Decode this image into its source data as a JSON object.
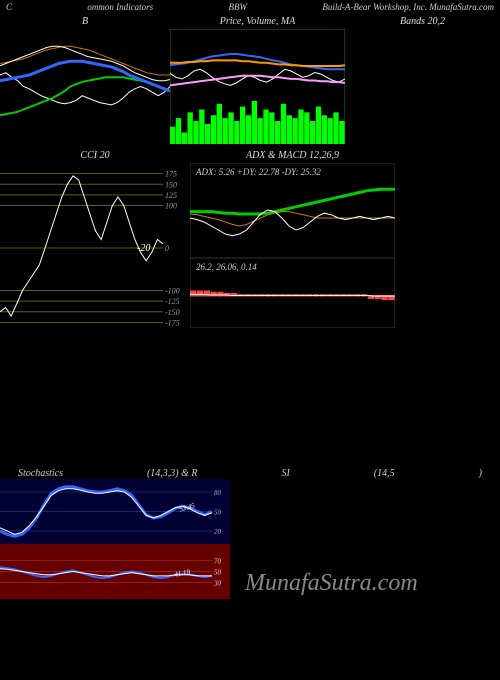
{
  "header": {
    "left": "C",
    "mid1": "ommon  Indicators",
    "mid2": "BBW",
    "right": "Build-A-Bear Workshop, Inc. MunafaSutra.com"
  },
  "panels": {
    "bb": {
      "title": "B",
      "bg": "#000000",
      "series": {
        "white1": {
          "color": "#ffffff",
          "width": 1,
          "pts": [
            60,
            62,
            58,
            55,
            50,
            48,
            45,
            42,
            40,
            38,
            36,
            35,
            36,
            38,
            42,
            40,
            38,
            36,
            35,
            34,
            36,
            40,
            45,
            48,
            50,
            48,
            45,
            42,
            45,
            50
          ]
        },
        "green": {
          "color": "#00cc00",
          "width": 2,
          "pts": [
            25,
            26,
            27,
            28,
            30,
            32,
            34,
            36,
            38,
            40,
            43,
            46,
            50,
            52,
            54,
            55,
            56,
            57,
            58,
            58,
            58,
            58,
            57,
            56,
            55,
            54,
            52,
            50,
            48,
            46
          ]
        },
        "blue": {
          "color": "#3366ff",
          "width": 3,
          "pts": [
            55,
            56,
            57,
            58,
            59,
            60,
            62,
            64,
            66,
            68,
            70,
            71,
            72,
            72,
            72,
            71,
            70,
            69,
            68,
            67,
            65,
            63,
            60,
            58,
            56,
            54,
            52,
            50,
            48,
            46
          ]
        },
        "orange": {
          "color": "#cc7700",
          "width": 1,
          "pts": [
            70,
            71,
            72,
            73,
            74,
            76,
            78,
            80,
            82,
            83,
            84,
            85,
            85,
            84,
            83,
            82,
            80,
            78,
            76,
            74,
            72,
            70,
            68,
            66,
            64,
            62,
            61,
            60,
            60,
            60
          ]
        },
        "white2": {
          "color": "#ffffff",
          "width": 1,
          "pts": [
            68,
            70,
            72,
            74,
            76,
            78,
            80,
            82,
            84,
            85,
            85,
            84,
            82,
            80,
            78,
            76,
            75,
            74,
            73,
            72,
            70,
            68,
            65,
            62,
            60,
            58,
            56,
            55,
            55,
            56
          ]
        }
      }
    },
    "price": {
      "title": "Price,  Volume,  MA",
      "bg": "#000000",
      "series": {
        "white": {
          "color": "#ffffff",
          "width": 1,
          "pts": [
            45,
            40,
            38,
            42,
            48,
            50,
            46,
            40,
            35,
            32,
            30,
            33,
            38,
            42,
            40,
            36,
            34,
            38,
            44,
            50,
            48,
            44,
            40,
            42,
            46,
            44,
            40,
            36,
            34,
            38
          ]
        },
        "pink": {
          "color": "#ff99ff",
          "width": 2,
          "pts": [
            30,
            31,
            32,
            33,
            34,
            35,
            36,
            37,
            38,
            39,
            40,
            41,
            42,
            42,
            42,
            42,
            41,
            40,
            40,
            39,
            38,
            38,
            37,
            36,
            36,
            35,
            35,
            34,
            34,
            33
          ]
        },
        "blue": {
          "color": "#3366ff",
          "width": 2,
          "pts": [
            55,
            56,
            57,
            58,
            60,
            62,
            64,
            66,
            67,
            68,
            69,
            69,
            68,
            67,
            66,
            65,
            63,
            61,
            60,
            58,
            56,
            55,
            54,
            53,
            52,
            51,
            50,
            50,
            50,
            50
          ]
        },
        "orange": {
          "color": "#ff9900",
          "width": 2,
          "pts": [
            58,
            58,
            58,
            59,
            59,
            60,
            60,
            61,
            61,
            61,
            61,
            61,
            60,
            60,
            59,
            58,
            58,
            57,
            56,
            56,
            55,
            55,
            54,
            54,
            54,
            54,
            54,
            54,
            54,
            55
          ]
        }
      },
      "volume": {
        "color": "#00ff00",
        "bars": [
          30,
          45,
          20,
          55,
          40,
          60,
          35,
          50,
          70,
          45,
          55,
          40,
          65,
          50,
          75,
          45,
          60,
          55,
          40,
          70,
          50,
          45,
          60,
          55,
          40,
          65,
          50,
          45,
          55,
          40
        ]
      }
    },
    "bands": {
      "title": "Bands 20,2"
    },
    "cci": {
      "title": "CCI 20",
      "bg": "#000000",
      "grid_color": "#556600",
      "levels": [
        175,
        150,
        125,
        100,
        0,
        -100,
        -125,
        -150,
        -175
      ],
      "marker_label": "-20",
      "series": {
        "white": {
          "color": "#ffffff",
          "width": 1,
          "pts": [
            -150,
            -140,
            -160,
            -130,
            -100,
            -80,
            -60,
            -40,
            0,
            40,
            80,
            120,
            150,
            170,
            160,
            120,
            80,
            40,
            20,
            60,
            100,
            120,
            100,
            60,
            20,
            -10,
            -30,
            -10,
            20,
            10
          ]
        }
      }
    },
    "adx": {
      "title": "ADX   & MACD 12,26,9",
      "label": "ADX: 5.26   +DY: 22.78   -DY: 25.32",
      "bg": "#000000",
      "series": {
        "green": {
          "color": "#00cc00",
          "width": 3,
          "pts": [
            58,
            58,
            58,
            58,
            57,
            56,
            56,
            55,
            55,
            55,
            55,
            56,
            58,
            60,
            62,
            64,
            66,
            68,
            70,
            72,
            74,
            76,
            78,
            80,
            82,
            84,
            85,
            86,
            86,
            86
          ]
        },
        "orange": {
          "color": "#cc7700",
          "width": 1,
          "pts": [
            55,
            54,
            52,
            50,
            48,
            45,
            42,
            40,
            42,
            46,
            50,
            54,
            56,
            58,
            58,
            56,
            54,
            52,
            50,
            50,
            50,
            50,
            50,
            50,
            50,
            50,
            50,
            50,
            50,
            50
          ]
        },
        "white": {
          "color": "#ffffff",
          "width": 1,
          "pts": [
            50,
            48,
            45,
            40,
            35,
            30,
            28,
            30,
            35,
            45,
            55,
            60,
            58,
            50,
            40,
            35,
            38,
            45,
            52,
            56,
            54,
            50,
            48,
            50,
            52,
            50,
            48,
            50,
            52,
            50
          ]
        }
      }
    },
    "macd": {
      "label": "26.2,  26.06,  0.14",
      "bg": "#000000",
      "series": {
        "red": {
          "color": "#ff4444",
          "width": 1,
          "pts": [
            50,
            50,
            50,
            50,
            50,
            50,
            50,
            50,
            50,
            50,
            50,
            50,
            50,
            50,
            50,
            50,
            50,
            50,
            50,
            50,
            50,
            50,
            50,
            50,
            50,
            50,
            50,
            50,
            50,
            50
          ]
        },
        "white": {
          "color": "#ffffff",
          "width": 1,
          "pts": [
            52,
            52,
            52,
            51,
            51,
            51,
            50,
            50,
            50,
            50,
            50,
            50,
            50,
            50,
            50,
            50,
            50,
            50,
            50,
            50,
            50,
            50,
            50,
            50,
            50,
            50,
            49,
            49,
            49,
            49
          ]
        }
      },
      "hist": {
        "color": "#ff4444",
        "bars": [
          5,
          5,
          5,
          4,
          4,
          3,
          3,
          2,
          2,
          2,
          2,
          2,
          2,
          2,
          2,
          2,
          2,
          2,
          2,
          2,
          2,
          2,
          2,
          2,
          2,
          2,
          -2,
          -2,
          -3,
          -3
        ]
      }
    },
    "stoch": {
      "title_left": "Stochastics",
      "title_mid": "(14,3,3) & R",
      "title_si": "SI",
      "title_right": "(14,5",
      "title_end": ")",
      "bg": "#000033",
      "grid_color": "#4444aa",
      "levels": [
        20,
        50,
        80
      ],
      "marker_label": "52.45",
      "series": {
        "blue": {
          "color": "#3366ff",
          "width": 3,
          "pts": [
            20,
            15,
            12,
            15,
            25,
            40,
            60,
            78,
            85,
            88,
            88,
            85,
            82,
            80,
            80,
            82,
            85,
            82,
            75,
            60,
            45,
            40,
            42,
            48,
            55,
            58,
            55,
            50,
            45,
            50
          ]
        },
        "white": {
          "color": "#ffffff",
          "width": 1,
          "pts": [
            25,
            20,
            15,
            18,
            28,
            42,
            58,
            75,
            82,
            85,
            85,
            83,
            80,
            78,
            78,
            80,
            82,
            80,
            72,
            58,
            44,
            40,
            44,
            50,
            56,
            58,
            54,
            48,
            44,
            48
          ]
        }
      }
    },
    "rsi": {
      "bg": "#660000",
      "grid_color": "#aa4444",
      "levels": [
        30,
        50,
        70
      ],
      "marker_label": "41.19",
      "series": {
        "blue": {
          "color": "#3366ff",
          "width": 2,
          "pts": [
            58,
            56,
            54,
            50,
            46,
            42,
            40,
            42,
            46,
            50,
            52,
            48,
            44,
            40,
            38,
            40,
            44,
            48,
            50,
            48,
            44,
            40,
            38,
            40,
            44,
            46,
            44,
            42,
            40,
            42
          ]
        },
        "white": {
          "color": "#ffffff",
          "width": 1,
          "pts": [
            55,
            54,
            52,
            50,
            48,
            46,
            44,
            44,
            46,
            48,
            50,
            48,
            46,
            44,
            42,
            42,
            44,
            46,
            48,
            46,
            44,
            42,
            42,
            42,
            44,
            44,
            44,
            42,
            42,
            42
          ]
        }
      }
    }
  },
  "watermark": "MunafaSutra.com"
}
